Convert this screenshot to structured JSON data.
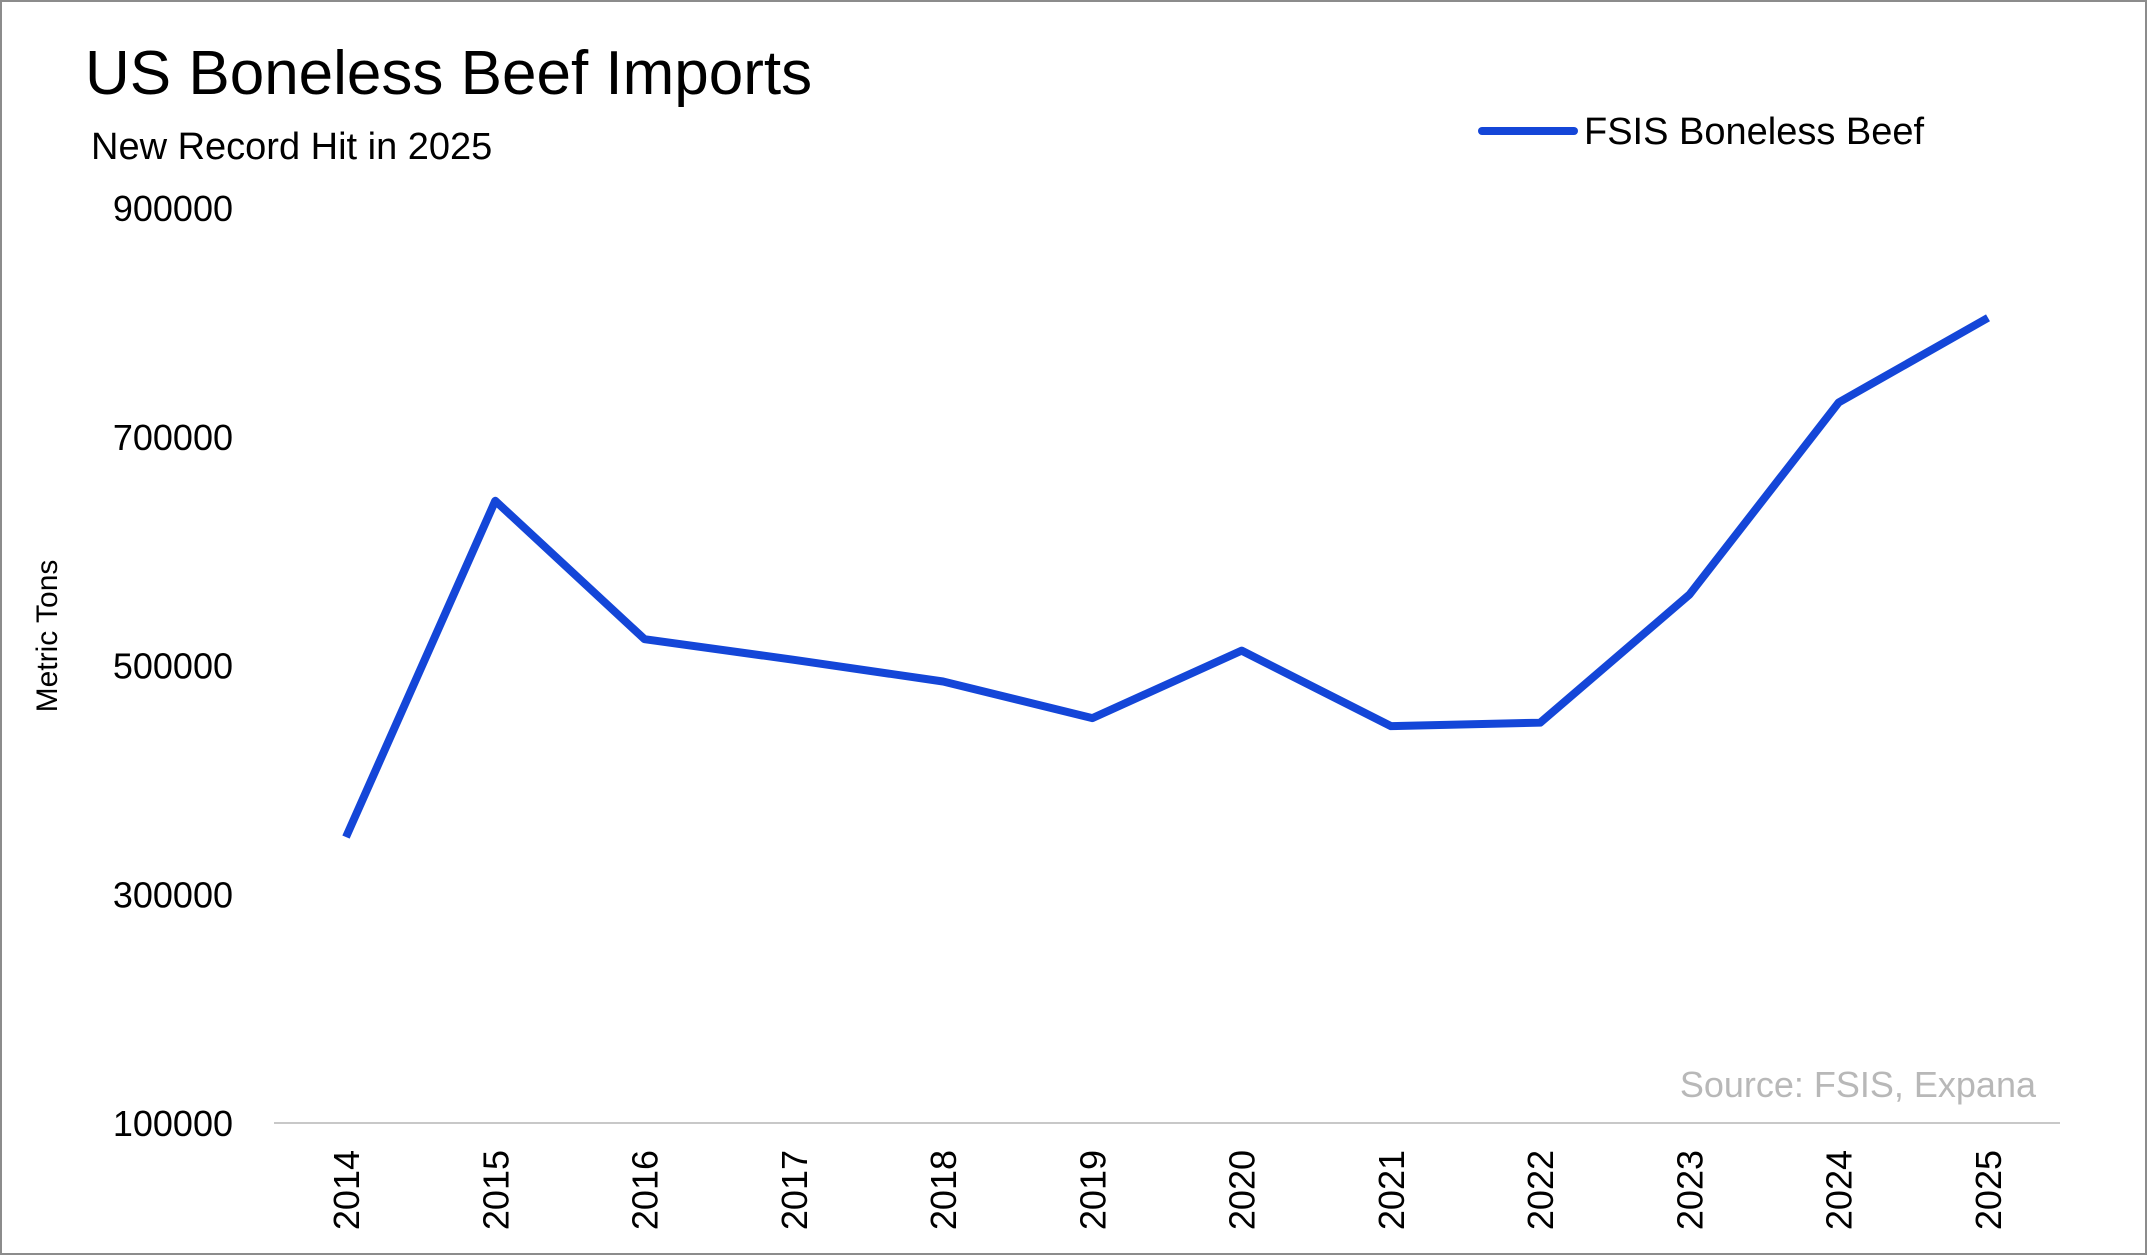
{
  "chart_data": {
    "type": "line",
    "title": "US Boneless Beef Imports",
    "subtitle": "New Record Hit in 2025",
    "xlabel": "",
    "ylabel": "Metric Tons",
    "ylim": [
      100000,
      900000
    ],
    "yticks": [
      "100000",
      "300000",
      "500000",
      "700000",
      "900000"
    ],
    "ytick_values": [
      100000,
      300000,
      500000,
      700000,
      900000
    ],
    "categories": [
      "2014",
      "2015",
      "2016",
      "2017",
      "2018",
      "2019",
      "2020",
      "2021",
      "2022",
      "2023",
      "2024",
      "2025"
    ],
    "series": [
      {
        "name": "FSIS Boneless Beef",
        "color": "#1446d8",
        "values": [
          350000,
          644000,
          523000,
          505000,
          486000,
          454000,
          513000,
          447000,
          450000,
          562000,
          730000,
          804000
        ]
      }
    ],
    "legend_position": "top-right",
    "grid": false,
    "source": "Source: FSIS, Expana"
  }
}
